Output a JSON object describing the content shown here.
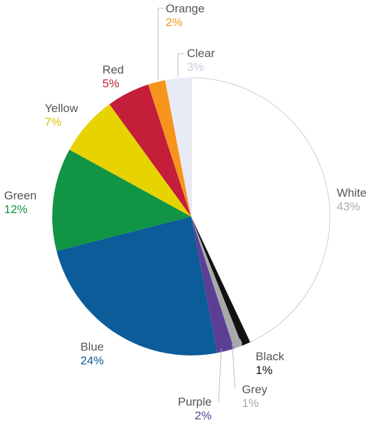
{
  "chart_data": {
    "type": "pie",
    "start_angle_deg": 0,
    "direction": "clockwise",
    "slices": [
      {
        "label": "White",
        "value": 43,
        "pct_text": "43%",
        "color": "#ffffff",
        "stroke": "#cccccc",
        "text_color": "#aaaaaa"
      },
      {
        "label": "Black",
        "value": 1,
        "pct_text": "1%",
        "color": "#111111",
        "text_color": "#111111"
      },
      {
        "label": "Grey",
        "value": 1,
        "pct_text": "1%",
        "color": "#a7a9ac",
        "text_color": "#a7a9ac"
      },
      {
        "label": "Purple",
        "value": 2,
        "pct_text": "2%",
        "color": "#5c3f94",
        "text_color": "#5c3f94"
      },
      {
        "label": "Blue",
        "value": 24,
        "pct_text": "24%",
        "color": "#0b5c99",
        "text_color": "#0b5c99"
      },
      {
        "label": "Green",
        "value": 12,
        "pct_text": "12%",
        "color": "#119444",
        "text_color": "#119444"
      },
      {
        "label": "Yellow",
        "value": 7,
        "pct_text": "7%",
        "color": "#e6d300",
        "text_color": "#d8c400"
      },
      {
        "label": "Red",
        "value": 5,
        "pct_text": "5%",
        "color": "#c41e3a",
        "text_color": "#c41e3a"
      },
      {
        "label": "Orange",
        "value": 2,
        "pct_text": "2%",
        "color": "#f7941d",
        "text_color": "#f7941d"
      },
      {
        "label": "Clear",
        "value": 3,
        "pct_text": "3%",
        "color": "#e8eaf5",
        "text_color": "#c8cbe0"
      }
    ]
  }
}
